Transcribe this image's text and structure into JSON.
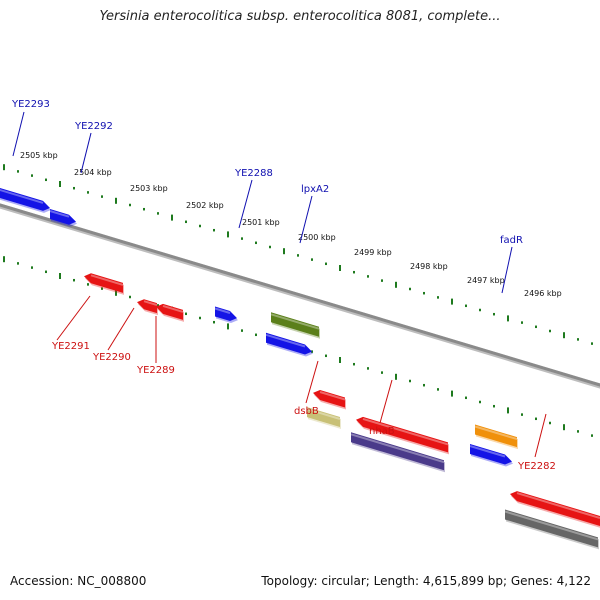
{
  "title": "Yersinia enterocolitica subsp. enterocolitica 8081, complete...",
  "footer": {
    "accession": "Accession: NC_008800",
    "topology": "Topology: circular; Length: 4,615,899 bp; Genes: 4,122"
  },
  "colors": {
    "plus_strand": "#1414e6",
    "minus_strand": "#e61414",
    "label_plus": "#1010b0",
    "label_minus": "#cc1010",
    "tick": "#1e7a1e",
    "backbone": "#8a8a8a"
  },
  "kbp_ticks": [
    "2505 kbp",
    "2504 kbp",
    "2503 kbp",
    "2502 kbp",
    "2501 kbp",
    "2500 kbp",
    "2499 kbp",
    "2498 kbp",
    "2497 kbp",
    "2496 kbp"
  ],
  "genes": [
    {
      "label": "YE2293",
      "strand": "plus",
      "color": "#1414e6"
    },
    {
      "label": "YE2292",
      "strand": "plus",
      "color": "#1414e6"
    },
    {
      "label": "YE2291",
      "strand": "minus",
      "color": "#e61414"
    },
    {
      "label": "YE2290",
      "strand": "minus",
      "color": "#e61414"
    },
    {
      "label": "YE2289",
      "strand": "minus",
      "color": "#e61414"
    },
    {
      "label": "YE2288",
      "strand": "plus",
      "color": "#1414e6"
    },
    {
      "label": "lpxA2",
      "strand": "plus",
      "color": "#5b7f1a"
    },
    {
      "label": "dsbB",
      "strand": "minus",
      "color": "#e61414"
    },
    {
      "label": "nhaB",
      "strand": "minus",
      "color": "#e61414"
    },
    {
      "label": "fadR",
      "strand": "plus",
      "color": "#1414e6"
    },
    {
      "label": "YE2282",
      "strand": "minus",
      "color": "#e61414"
    }
  ]
}
